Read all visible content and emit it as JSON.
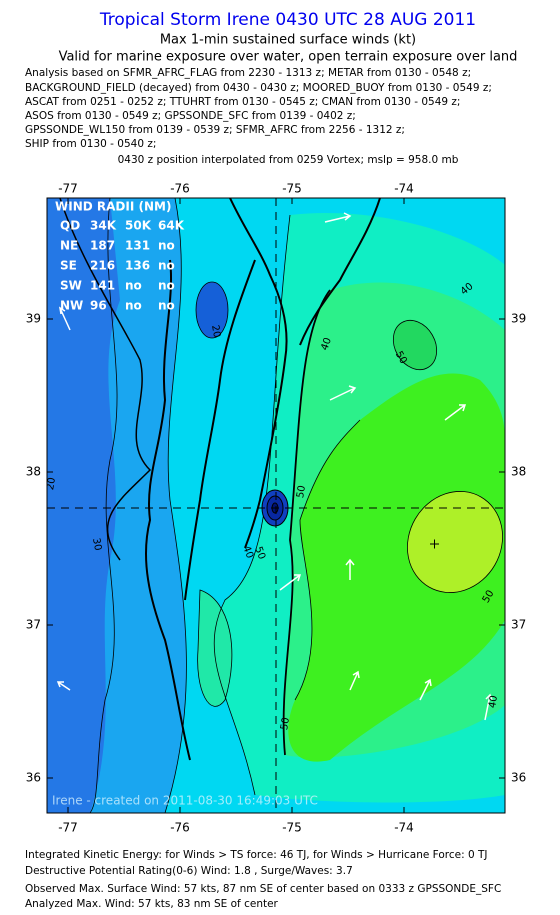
{
  "header": {
    "title": "Tropical Storm Irene 0430 UTC 28 AUG 2011",
    "subtitle": "Max 1-min sustained surface winds (kt)",
    "validity": "Valid for marine exposure over water, open terrain exposure over land",
    "sources": [
      "Analysis based on SFMR_AFRC_FLAG from 2230 - 1313 z; METAR from 0130 - 0548 z;",
      "BACKGROUND_FIELD (decayed) from 0430 - 0430 z; MOORED_BUOY from 0130 - 0549 z;",
      "ASCAT from 0251 - 0252 z; TTUHRT from 0130 - 0545 z; CMAN from 0130 - 0549 z;",
      "ASOS from 0130 - 0549 z; GPSSONDE_SFC from 0139 - 0402 z;",
      "GPSSONDE_WL150 from 0139 - 0539 z; SFMR_AFRC from 2256 - 1312 z;",
      "SHIP from 0130 - 0540 z;"
    ],
    "position_note": "0430 z position interpolated from 0259 Vortex; mslp = 958.0 mb"
  },
  "map": {
    "lon_ticks": [
      -77,
      -76,
      -75,
      -74
    ],
    "lat_ticks": [
      39,
      38,
      37,
      36
    ],
    "wind_radii": {
      "title": "WIND RADII (NM)",
      "columns": [
        "QD",
        "34K",
        "50K",
        "64K"
      ],
      "rows": [
        [
          "NE",
          "187",
          "131",
          "no"
        ],
        [
          "SE",
          "216",
          "136",
          "no"
        ],
        [
          "SW",
          "141",
          "no",
          "no"
        ],
        [
          "NW",
          "96",
          "no",
          "no"
        ]
      ]
    },
    "contour_labels": [
      "20",
      "20",
      "30",
      "40",
      "40",
      "40",
      "50",
      "50",
      "50",
      "50",
      "40",
      "50"
    ],
    "watermark": "Irene - created on 2011-08-30 16:49:03 UTC"
  },
  "footer": {
    "lines": [
      "Integrated Kinetic Energy:  for Winds > TS force: 46 TJ,  for Winds > Hurricane Force: 0 TJ",
      "Destructive Potential Rating(0-6)  Wind: 1.8 , Surge/Waves: 3.7",
      "Observed Max. Surface Wind: 57 kts, 87 nm SE of center based on 0333 z GPSSONDE_SFC",
      "Analyzed Max. Wind: 57 kts, 83 nm SE of center"
    ]
  }
}
